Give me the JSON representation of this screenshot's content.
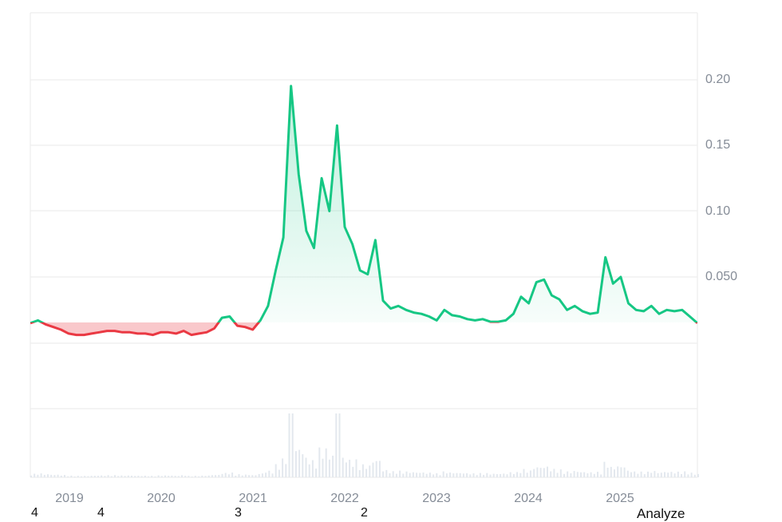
{
  "chart_data": {
    "type": "line",
    "title": "",
    "xlabel": "",
    "ylabel": "",
    "ylim": [
      -0.014,
      0.25
    ],
    "y_ticks": [
      "0.20",
      "0.15",
      "0.10",
      "0.050"
    ],
    "y_tick_values": [
      0.2,
      0.15,
      0.1,
      0.05
    ],
    "x_ticks": [
      "2019",
      "2020",
      "2021",
      "2022",
      "2023",
      "2024",
      "2025"
    ],
    "baseline_value": 0.0155,
    "grid": true,
    "colors": {
      "above": "#16c784",
      "below": "#ea3943",
      "volume": "#e3e8ee",
      "grid": "#eeeeee",
      "tick": "#858c97"
    },
    "series": [
      {
        "name": "price",
        "x": [
          "2018-07",
          "2018-08",
          "2018-09",
          "2018-10",
          "2018-11",
          "2018-12",
          "2019-01",
          "2019-02",
          "2019-03",
          "2019-04",
          "2019-05",
          "2019-06",
          "2019-07",
          "2019-08",
          "2019-09",
          "2019-10",
          "2019-11",
          "2019-12",
          "2020-01",
          "2020-02",
          "2020-03",
          "2020-04",
          "2020-05",
          "2020-06",
          "2020-07",
          "2020-08",
          "2020-09",
          "2020-10",
          "2020-11",
          "2020-12",
          "2021-01",
          "2021-02",
          "2021-03",
          "2021-04",
          "2021-05",
          "2021-06",
          "2021-07",
          "2021-08",
          "2021-09",
          "2021-10",
          "2021-11",
          "2021-12",
          "2022-01",
          "2022-02",
          "2022-03",
          "2022-04",
          "2022-05",
          "2022-06",
          "2022-07",
          "2022-08",
          "2022-09",
          "2022-10",
          "2022-11",
          "2022-12",
          "2023-01",
          "2023-02",
          "2023-03",
          "2023-04",
          "2023-05",
          "2023-06",
          "2023-07",
          "2023-08",
          "2023-09",
          "2023-10",
          "2023-11",
          "2023-12",
          "2024-01",
          "2024-02",
          "2024-03",
          "2024-04",
          "2024-05",
          "2024-06",
          "2024-07",
          "2024-08",
          "2024-09",
          "2024-10",
          "2024-11",
          "2024-12",
          "2025-01",
          "2025-02",
          "2025-03",
          "2025-04",
          "2025-05",
          "2025-06",
          "2025-07",
          "2025-08",
          "2025-09",
          "2025-10"
        ],
        "values": [
          0.015,
          0.017,
          0.014,
          0.012,
          0.01,
          0.007,
          0.006,
          0.006,
          0.007,
          0.008,
          0.009,
          0.009,
          0.008,
          0.008,
          0.007,
          0.007,
          0.006,
          0.008,
          0.008,
          0.007,
          0.009,
          0.006,
          0.007,
          0.008,
          0.011,
          0.019,
          0.02,
          0.013,
          0.012,
          0.01,
          0.017,
          0.028,
          0.055,
          0.08,
          0.195,
          0.128,
          0.085,
          0.072,
          0.125,
          0.1,
          0.165,
          0.088,
          0.075,
          0.055,
          0.052,
          0.078,
          0.032,
          0.026,
          0.028,
          0.025,
          0.023,
          0.022,
          0.02,
          0.017,
          0.025,
          0.021,
          0.02,
          0.018,
          0.017,
          0.018,
          0.016,
          0.016,
          0.017,
          0.022,
          0.035,
          0.03,
          0.046,
          0.048,
          0.036,
          0.033,
          0.025,
          0.028,
          0.024,
          0.022,
          0.023,
          0.065,
          0.045,
          0.05,
          0.03,
          0.025,
          0.024,
          0.028,
          0.022,
          0.025,
          0.024,
          0.025,
          0.02,
          0.015
        ]
      },
      {
        "name": "volume",
        "note": "relative volume bars in lower pane; peak in mid-2021",
        "x": [
          "2019",
          "2020",
          "2021-03",
          "2021-05",
          "2021-06",
          "2021-09",
          "2021-11",
          "2022-03",
          "2023",
          "2024",
          "2025"
        ],
        "values": [
          0.03,
          0.03,
          0.3,
          1.0,
          0.55,
          0.15,
          0.12,
          0.1,
          0.03,
          0.03,
          0.02
        ]
      }
    ]
  },
  "axes": {
    "y_labels": [
      "0.20",
      "0.15",
      "0.10",
      "0.050"
    ],
    "x_labels": [
      "2019",
      "2020",
      "2021",
      "2022",
      "2023",
      "2024",
      "2025"
    ]
  },
  "bottom_row": {
    "numbers": [
      "4",
      "4",
      "3",
      "2"
    ],
    "analyze_label": "Analyze"
  }
}
